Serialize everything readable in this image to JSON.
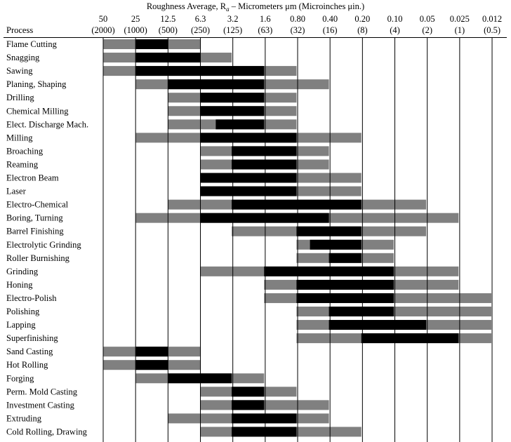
{
  "chart_data": {
    "type": "bar",
    "title": "Roughness Average, R",
    "title_sub": "a",
    "title_rest": " – Micrometers μm (Microinches μin.)",
    "process_header": "Process",
    "colors": {
      "typical": "#000000",
      "less_frequent": "#808080",
      "grid": "#000000"
    },
    "scale_um": [
      "50",
      "25",
      "12.5",
      "6.3",
      "3.2",
      "1.6",
      "0.80",
      "0.40",
      "0.20",
      "0.10",
      "0.05",
      "0.025",
      "0.012"
    ],
    "scale_uin": [
      "(2000)",
      "(1000)",
      "(500)",
      "(250)",
      "(125)",
      "(63)",
      "(32)",
      "(16)",
      "(8)",
      "(4)",
      "(2)",
      "(1)",
      "(0.5)"
    ],
    "processes": [
      {
        "name": "Flame Cutting",
        "range": [
          50,
          6.3
        ],
        "typical": [
          25,
          12.5
        ]
      },
      {
        "name": "Snagging",
        "range": [
          50,
          3.2
        ],
        "typical": [
          25,
          6.3
        ]
      },
      {
        "name": "Sawing",
        "range": [
          50,
          0.8
        ],
        "typical": [
          25,
          1.6
        ]
      },
      {
        "name": "Planing, Shaping",
        "range": [
          25,
          0.4
        ],
        "typical": [
          12.5,
          1.6
        ]
      },
      {
        "name": "Drilling",
        "range": [
          12.5,
          0.8
        ],
        "typical": [
          6.3,
          1.6
        ]
      },
      {
        "name": "Chemical Milling",
        "range": [
          12.5,
          0.8
        ],
        "typical": [
          6.3,
          1.6
        ]
      },
      {
        "name": "Elect. Discharge Mach.",
        "range": [
          12.5,
          0.8
        ],
        "typical": [
          4.5,
          1.6
        ]
      },
      {
        "name": "Milling",
        "range": [
          25,
          0.2
        ],
        "typical": [
          6.3,
          0.8
        ]
      },
      {
        "name": "Broaching",
        "range": [
          6.3,
          0.4
        ],
        "typical": [
          3.2,
          0.8
        ]
      },
      {
        "name": "Reaming",
        "range": [
          6.3,
          0.4
        ],
        "typical": [
          3.2,
          0.8
        ]
      },
      {
        "name": "Electron Beam",
        "range": [
          6.3,
          0.2
        ],
        "typical": [
          6.3,
          0.8
        ]
      },
      {
        "name": "Laser",
        "range": [
          6.3,
          0.2
        ],
        "typical": [
          6.3,
          0.8
        ]
      },
      {
        "name": "Electro-Chemical",
        "range": [
          12.5,
          0.05
        ],
        "typical": [
          3.2,
          0.2
        ]
      },
      {
        "name": "Boring, Turning",
        "range": [
          25,
          0.025
        ],
        "typical": [
          6.3,
          0.4
        ]
      },
      {
        "name": "Barrel Finishing",
        "range": [
          3.2,
          0.05
        ],
        "typical": [
          0.8,
          0.2
        ]
      },
      {
        "name": "Electrolytic Grinding",
        "range": [
          0.8,
          0.1
        ],
        "typical": [
          0.6,
          0.2
        ]
      },
      {
        "name": "Roller Burnishing",
        "range": [
          0.8,
          0.1
        ],
        "typical": [
          0.4,
          0.2
        ]
      },
      {
        "name": "Grinding",
        "range": [
          6.3,
          0.025
        ],
        "typical": [
          1.6,
          0.1
        ]
      },
      {
        "name": "Honing",
        "range": [
          1.6,
          0.025
        ],
        "typical": [
          0.8,
          0.1
        ]
      },
      {
        "name": "Electro-Polish",
        "range": [
          1.6,
          0.012
        ],
        "typical": [
          0.8,
          0.1
        ]
      },
      {
        "name": "Polishing",
        "range": [
          0.8,
          0.012
        ],
        "typical": [
          0.4,
          0.1
        ]
      },
      {
        "name": "Lapping",
        "range": [
          0.8,
          0.012
        ],
        "typical": [
          0.4,
          0.05
        ]
      },
      {
        "name": "Superfinishing",
        "range": [
          0.8,
          0.012
        ],
        "typical": [
          0.2,
          0.025
        ]
      },
      {
        "name": "Sand Casting",
        "range": [
          50,
          6.3
        ],
        "typical": [
          25,
          12.5
        ]
      },
      {
        "name": "Hot Rolling",
        "range": [
          50,
          6.3
        ],
        "typical": [
          25,
          12.5
        ]
      },
      {
        "name": "Forging",
        "range": [
          25,
          1.6
        ],
        "typical": [
          12.5,
          3.2
        ]
      },
      {
        "name": "Perm. Mold Casting",
        "range": [
          6.3,
          0.8
        ],
        "typical": [
          3.2,
          1.6
        ]
      },
      {
        "name": "Investment Casting",
        "range": [
          6.3,
          0.4
        ],
        "typical": [
          3.2,
          1.6
        ]
      },
      {
        "name": "Extruding",
        "range": [
          12.5,
          0.4
        ],
        "typical": [
          3.2,
          0.8
        ]
      },
      {
        "name": "Cold Rolling, Drawing",
        "range": [
          6.3,
          0.2
        ],
        "typical": [
          3.2,
          0.8
        ]
      }
    ]
  }
}
